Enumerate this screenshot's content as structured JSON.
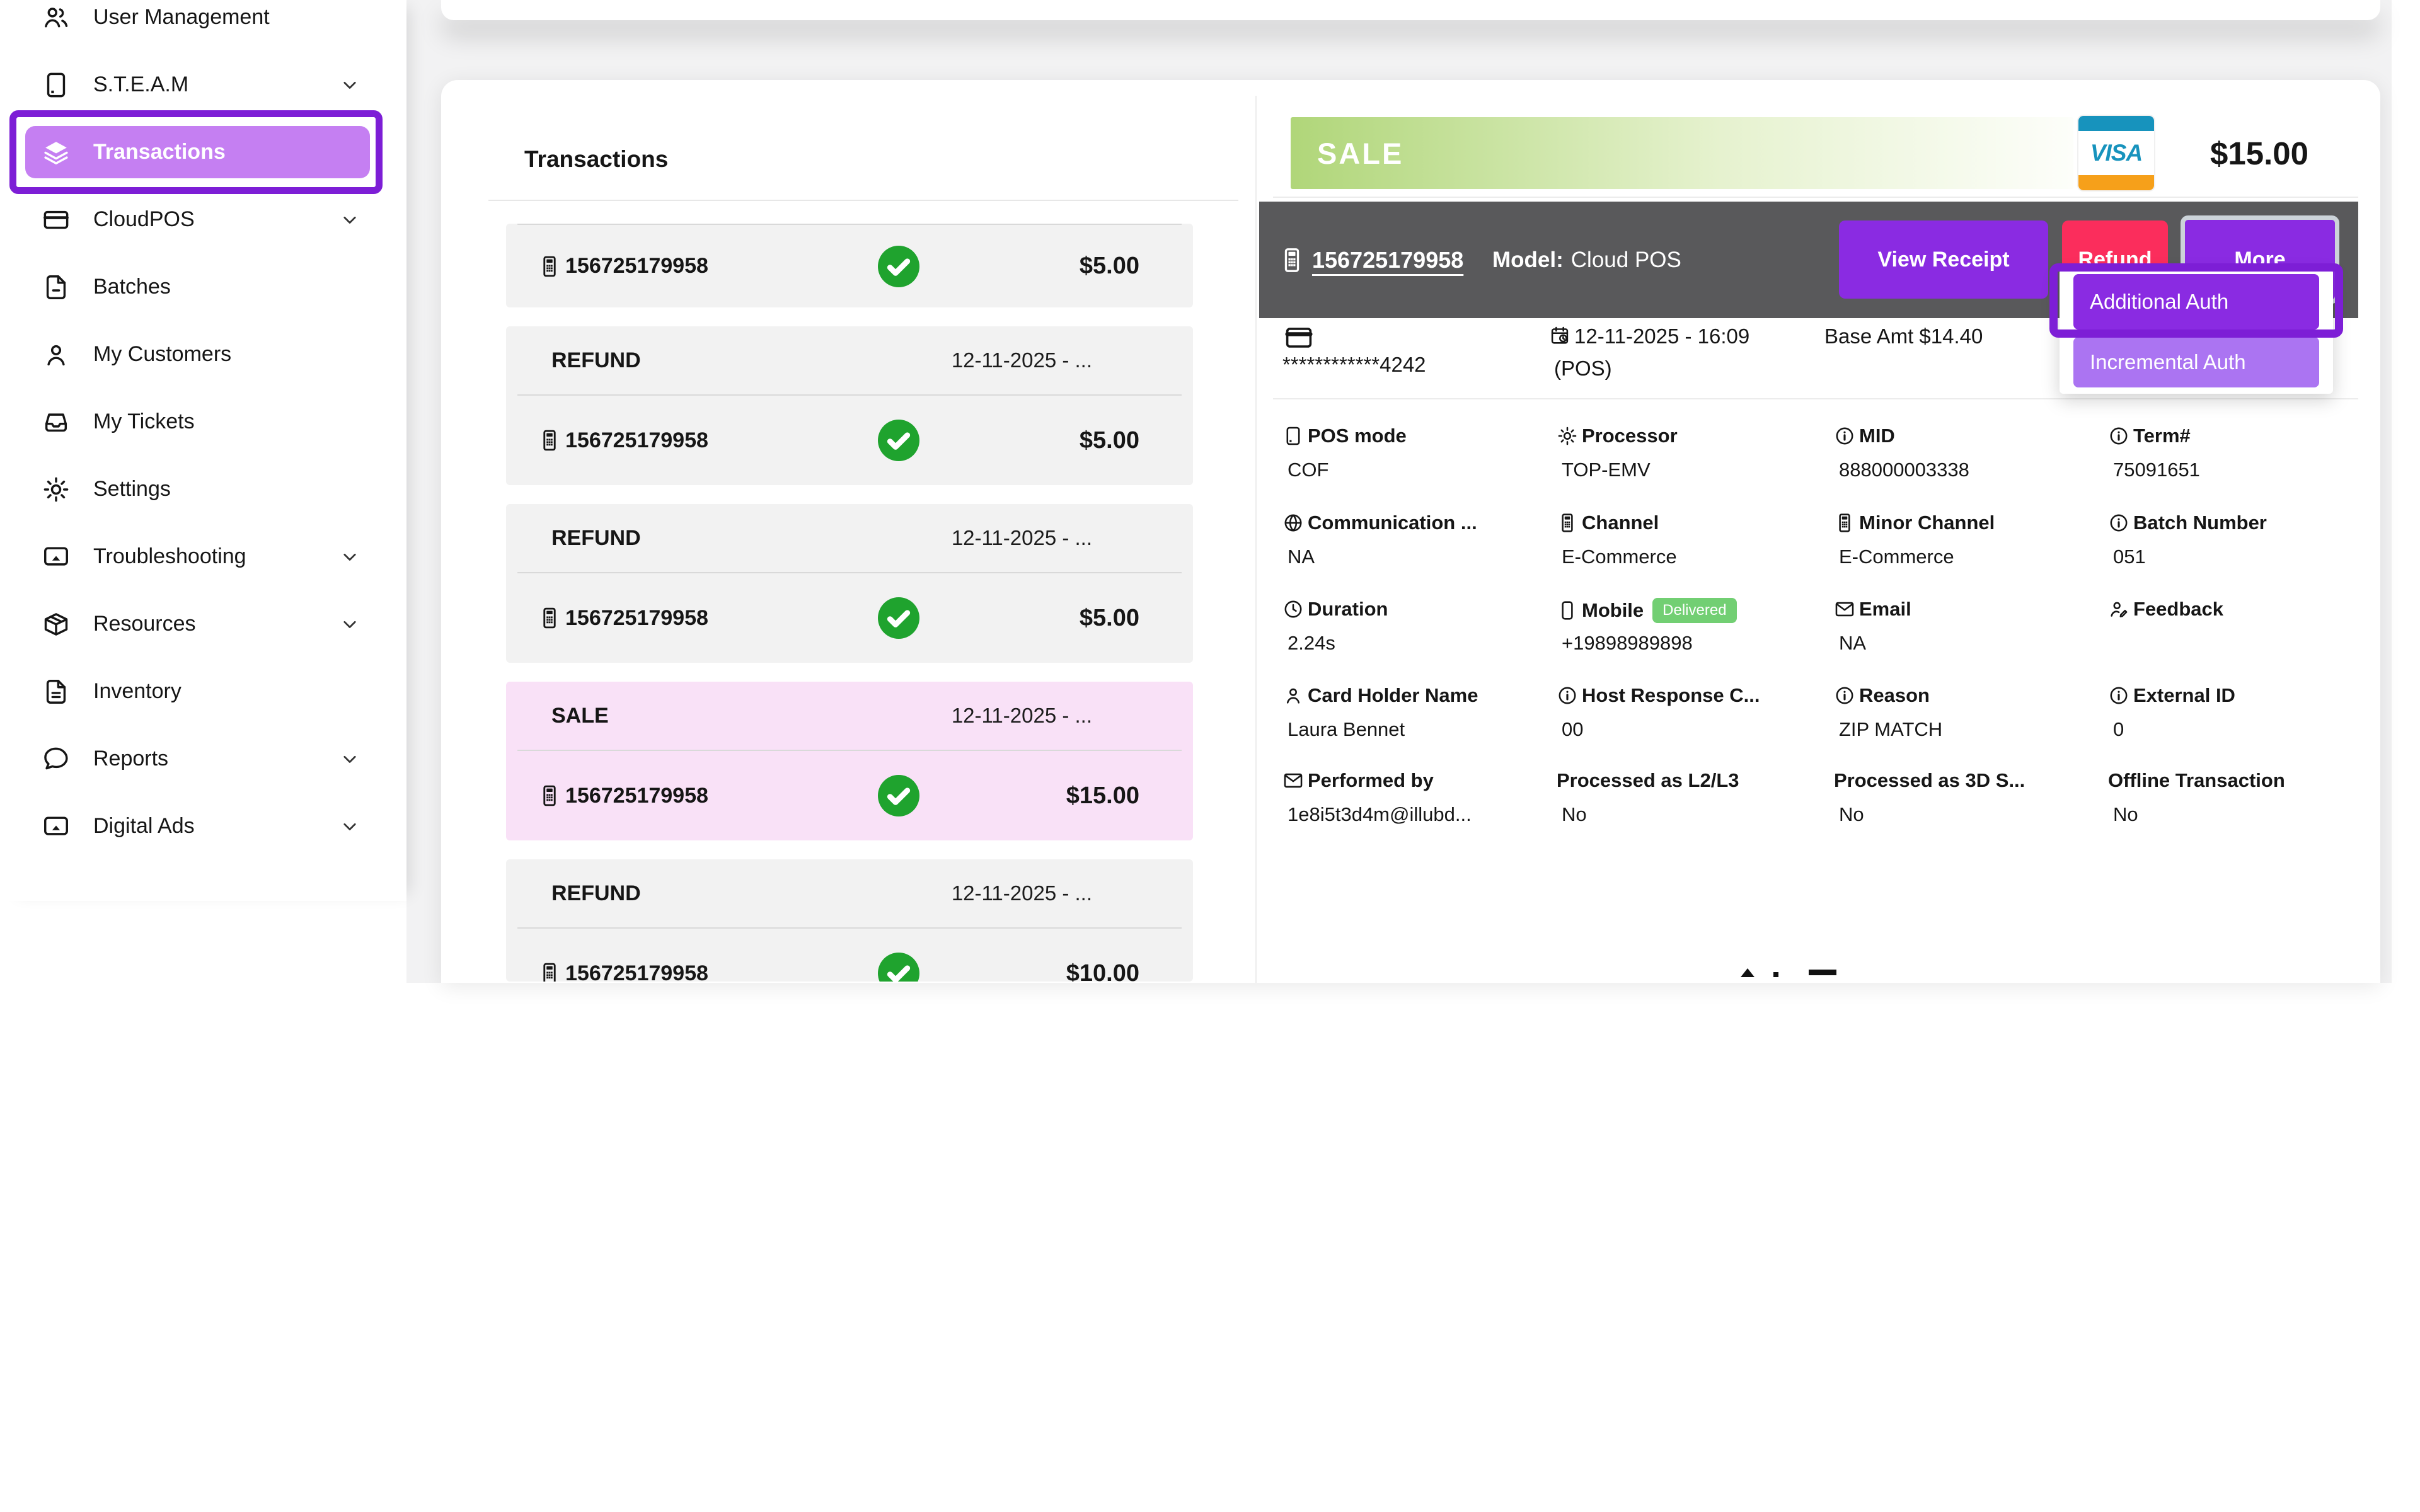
{
  "colors": {
    "accent": "#8a2be2",
    "annotation": "#7d1ed6",
    "active_pill": "#c57ff2",
    "incremental": "#ab74f2",
    "refund_pink": "#fb2d5c",
    "check_green": "#1fa32e",
    "delivered": "#72cf73",
    "banner_green": "#b0d679",
    "visa_teal": "#1793bd",
    "visa_orange": "#f6a01a",
    "row_pink": "#f9e1f7",
    "row_gray": "#f2f2f2",
    "bar_gray": "#59595b"
  },
  "sidebar": {
    "items": [
      {
        "label": "User Management",
        "icon": "users"
      },
      {
        "label": "S.T.E.A.M",
        "icon": "tablet",
        "chevron": true
      },
      {
        "label": "Transactions",
        "icon": "layers",
        "active": true,
        "annotated": true
      },
      {
        "label": "CloudPOS",
        "icon": "credit-card",
        "chevron": true
      },
      {
        "label": "Batches",
        "icon": "file-minus"
      },
      {
        "label": "My Customers",
        "icon": "user"
      },
      {
        "label": "My Tickets",
        "icon": "inbox"
      },
      {
        "label": "Settings",
        "icon": "gear"
      },
      {
        "label": "Troubleshooting",
        "icon": "cast",
        "chevron": true
      },
      {
        "label": "Resources",
        "icon": "package",
        "chevron": true
      },
      {
        "label": "Inventory",
        "icon": "file-text"
      },
      {
        "label": "Reports",
        "icon": "message-circle",
        "chevron": true
      },
      {
        "label": "Digital Ads",
        "icon": "cast",
        "chevron": true
      }
    ]
  },
  "transactions_panel": {
    "title": "Transactions",
    "groups": [
      {
        "header": null,
        "rows": [
          {
            "id": "156725179958",
            "amount": "$5.00"
          }
        ]
      },
      {
        "header": {
          "type": "REFUND",
          "date": "12-11-2025 - ..."
        },
        "rows": [
          {
            "id": "156725179958",
            "amount": "$5.00"
          }
        ]
      },
      {
        "header": {
          "type": "REFUND",
          "date": "12-11-2025 - ..."
        },
        "rows": [
          {
            "id": "156725179958",
            "amount": "$5.00"
          }
        ]
      },
      {
        "header": {
          "type": "SALE",
          "date": "12-11-2025 - ..."
        },
        "highlighted": true,
        "rows": [
          {
            "id": "156725179958",
            "amount": "$15.00"
          }
        ]
      },
      {
        "header": {
          "type": "REFUND",
          "date": "12-11-2025 - ..."
        },
        "clipped": true,
        "rows": [
          {
            "id": "156725179958",
            "amount": "$10.00"
          }
        ]
      }
    ]
  },
  "details": {
    "type_banner": "SALE",
    "card_brand": "VISA",
    "amount": "$15.00",
    "terminal_id": "156725179958",
    "model_label": "Model:",
    "model_value": "Cloud POS",
    "buttons": {
      "view_receipt": "View Receipt",
      "refund": "Refund",
      "more": "More"
    },
    "dropdown": {
      "additional": "Additional Auth",
      "incremental": "Incremental Auth"
    },
    "card_number": "************4242",
    "datetime": "12-11-2025 - 16:09",
    "datetime_suffix": "(POS)",
    "base_amount": "Base Amt $14.40",
    "fields": [
      {
        "col": 0,
        "row": 0,
        "icon": "tablet",
        "label": "POS mode",
        "value": "COF"
      },
      {
        "col": 1,
        "row": 0,
        "icon": "gear",
        "label": "Processor",
        "value": "TOP-EMV"
      },
      {
        "col": 2,
        "row": 0,
        "icon": "info",
        "label": "MID",
        "value": "888000003338"
      },
      {
        "col": 3,
        "row": 0,
        "icon": "info",
        "label": "Term#",
        "value": "75091651"
      },
      {
        "col": 0,
        "row": 1,
        "icon": "globe",
        "label": "Communication ...",
        "value": "NA"
      },
      {
        "col": 1,
        "row": 1,
        "icon": "pos",
        "label": "Channel",
        "value": "E-Commerce"
      },
      {
        "col": 2,
        "row": 1,
        "icon": "pos",
        "label": "Minor Channel",
        "value": "E-Commerce"
      },
      {
        "col": 3,
        "row": 1,
        "icon": "info",
        "label": "Batch Number",
        "value": "051"
      },
      {
        "col": 0,
        "row": 2,
        "icon": "clock",
        "label": "Duration",
        "value": "2.24s"
      },
      {
        "col": 1,
        "row": 2,
        "icon": "phone",
        "label": "Mobile",
        "badge": "Delivered",
        "value": "+19898989898"
      },
      {
        "col": 2,
        "row": 2,
        "icon": "mail",
        "label": "Email",
        "value": "NA"
      },
      {
        "col": 3,
        "row": 2,
        "icon": "user-edit",
        "label": "Feedback",
        "value": ""
      },
      {
        "col": 0,
        "row": 3,
        "icon": "user",
        "label": "Card Holder Name",
        "value": "Laura Bennet"
      },
      {
        "col": 1,
        "row": 3,
        "icon": "info",
        "label": "Host Response C...",
        "value": "00"
      },
      {
        "col": 2,
        "row": 3,
        "icon": "info",
        "label": "Reason",
        "value": "ZIP MATCH"
      },
      {
        "col": 3,
        "row": 3,
        "icon": "info",
        "label": "External ID",
        "value": "0"
      },
      {
        "col": 0,
        "row": 4,
        "icon": "mail",
        "label": "Performed by",
        "value": "1e8i5t3d4m@illubd..."
      },
      {
        "col": 1,
        "row": 4,
        "icon": null,
        "label": "Processed as L2/L3",
        "value": "No"
      },
      {
        "col": 2,
        "row": 4,
        "icon": null,
        "label": "Processed as 3D S...",
        "value": "No"
      },
      {
        "col": 3,
        "row": 4,
        "icon": null,
        "label": "Offline Transaction",
        "value": "No"
      }
    ]
  }
}
